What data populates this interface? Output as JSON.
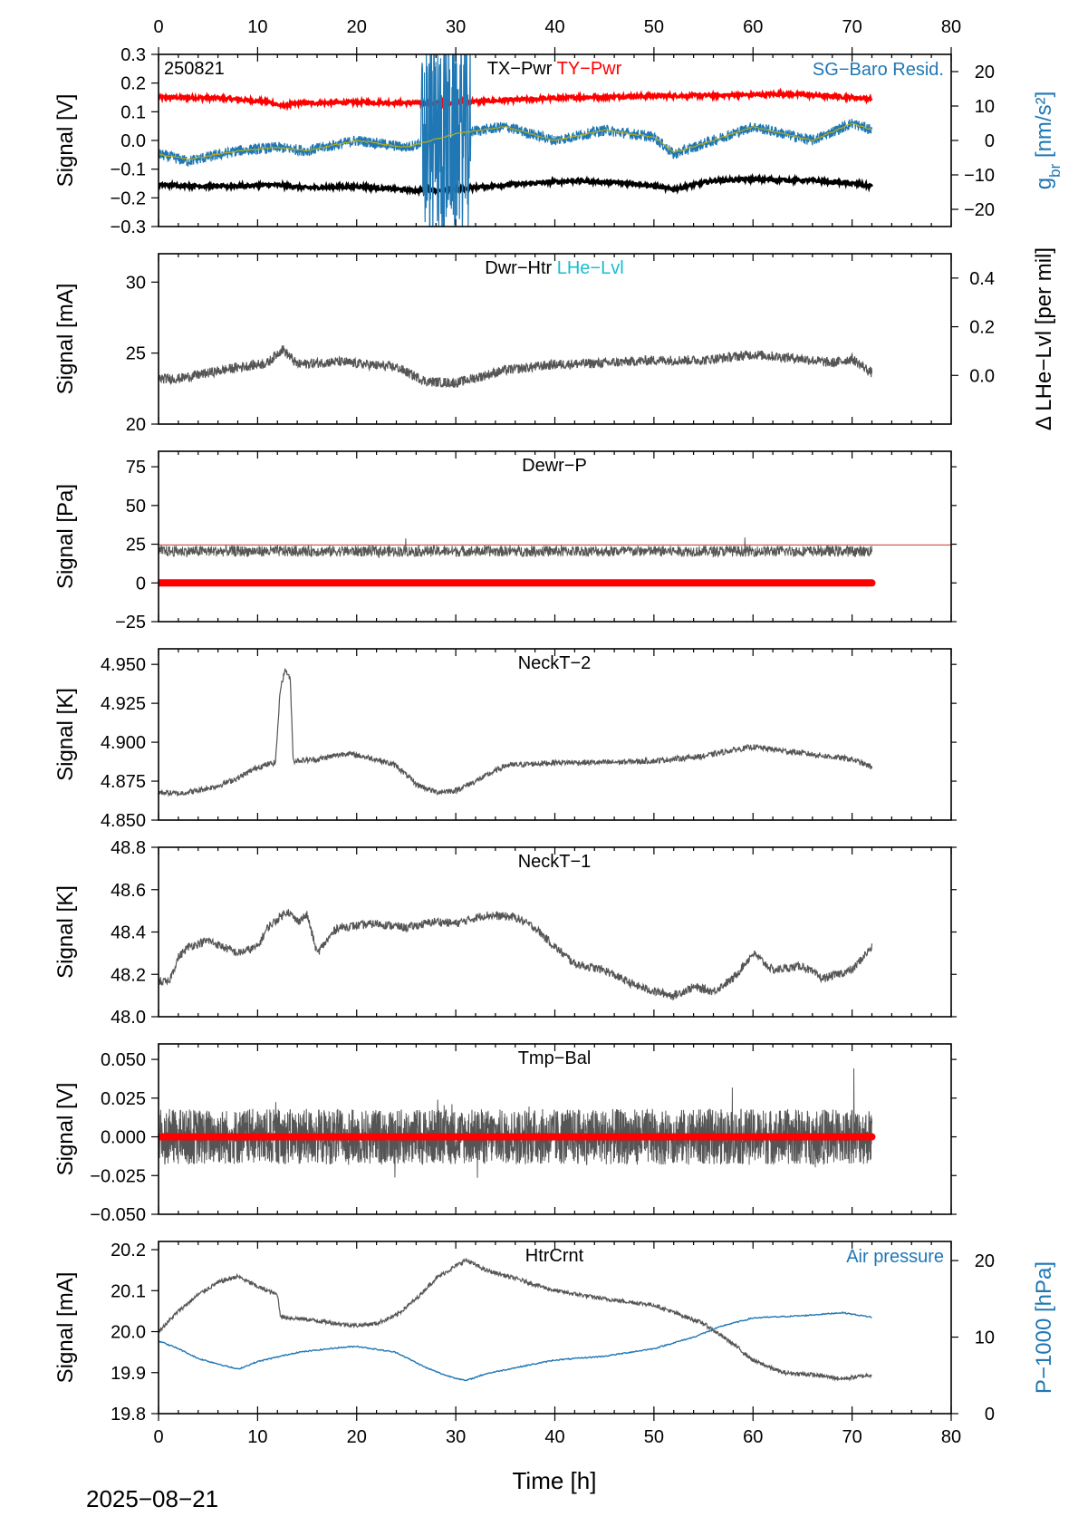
{
  "figure": {
    "date_label": "2025−08−21",
    "x_axis_label": "Time [h]",
    "x_range": [
      0,
      80
    ],
    "x_ticks": [
      0,
      10,
      20,
      30,
      40,
      50,
      60,
      70,
      80
    ],
    "x_minor_step": 2,
    "data_end_h": 72
  },
  "chart_data": [
    {
      "id": "power",
      "type": "line",
      "panel_titles": [
        {
          "text": "TX−Pwr",
          "color": "#000000"
        },
        {
          "text": "TY−Pwr",
          "color": "#ff0000"
        }
      ],
      "corner_label": "250821",
      "right_title": {
        "text": "SG−Baro Resid.",
        "color": "#1f77b4"
      },
      "ylabel": "Signal [V]",
      "ylim": [
        -0.3,
        0.3
      ],
      "yticks": [
        -0.3,
        -0.2,
        -0.1,
        0.0,
        0.1,
        0.2,
        0.3
      ],
      "ytick_labels": [
        "−0.3",
        "−0.2",
        "−0.1",
        "0.0",
        "0.1",
        "0.2",
        "0.3"
      ],
      "ylabel2": "g_br [nm/s²]",
      "ylim2": [
        -25,
        25
      ],
      "yticks2": [
        -20,
        -10,
        0,
        10,
        20
      ],
      "ytick_labels2": [
        "−20",
        "−10",
        "0",
        "10",
        "20"
      ],
      "series": [
        {
          "key": "ty",
          "color": "#ff0000",
          "axis": "left",
          "x": [
            0,
            6,
            11,
            12.5,
            14,
            20,
            28,
            35,
            42,
            50,
            58,
            64,
            70,
            72
          ],
          "y": [
            0.15,
            0.148,
            0.135,
            0.12,
            0.13,
            0.133,
            0.13,
            0.14,
            0.15,
            0.155,
            0.158,
            0.162,
            0.15,
            0.145
          ]
        },
        {
          "key": "tx",
          "color": "#000000",
          "axis": "left",
          "x": [
            0,
            6,
            12,
            15,
            20,
            26,
            30,
            35,
            42,
            48,
            52,
            56,
            60,
            66,
            70,
            72
          ],
          "y": [
            -0.155,
            -0.16,
            -0.155,
            -0.165,
            -0.16,
            -0.175,
            -0.17,
            -0.155,
            -0.14,
            -0.15,
            -0.17,
            -0.14,
            -0.135,
            -0.14,
            -0.15,
            -0.16
          ]
        },
        {
          "key": "sg",
          "color": "#1f77b4",
          "axis": "right",
          "x": [
            0,
            3,
            8,
            12,
            15,
            20,
            25,
            30,
            35,
            40,
            45,
            50,
            52,
            56,
            60,
            63,
            66,
            70,
            72
          ],
          "y": [
            -4,
            -6,
            -3,
            -2,
            -3,
            0,
            -2,
            2,
            4,
            0,
            3,
            1,
            -4,
            0,
            4,
            2,
            0,
            5,
            3
          ]
        },
        {
          "key": "sg_fit",
          "color": "#b5ad1a",
          "axis": "right",
          "x": [
            0,
            3,
            8,
            12,
            15,
            20,
            25,
            30,
            35,
            40,
            45,
            50,
            52,
            56,
            60,
            63,
            66,
            70,
            72
          ],
          "y": [
            -4,
            -5.5,
            -3,
            -2,
            -3,
            0,
            -2,
            2,
            4,
            0,
            3,
            1,
            -3.5,
            0,
            4,
            2,
            0,
            5,
            3
          ]
        }
      ]
    },
    {
      "id": "heater",
      "type": "line",
      "panel_titles": [
        {
          "text": "Dwr−Htr",
          "color": "#000000"
        },
        {
          "text": "LHe−Lvl",
          "color": "#17becf"
        }
      ],
      "ylabel": "Signal [mA]",
      "ylim": [
        20,
        32
      ],
      "yticks": [
        20,
        25,
        30
      ],
      "ytick_labels": [
        "20",
        "25",
        "30"
      ],
      "ylabel2": "Δ LHe−Lvl [per mil]",
      "ylim2": [
        -0.2,
        0.5
      ],
      "yticks2": [
        0.0,
        0.2,
        0.4
      ],
      "ytick_labels2": [
        "0.0",
        "0.2",
        "0.4"
      ],
      "series": [
        {
          "key": "dwr_htr",
          "color": "#555555",
          "x": [
            0,
            2,
            5,
            8,
            11,
            12.5,
            14,
            18,
            24,
            27,
            30,
            35,
            40,
            45,
            50,
            55,
            60,
            65,
            68,
            70,
            72
          ],
          "y": [
            23.2,
            23.2,
            23.6,
            24.0,
            24.3,
            25.3,
            24.2,
            24.4,
            24.0,
            23.0,
            22.9,
            23.8,
            24.2,
            24.3,
            24.5,
            24.5,
            24.9,
            24.6,
            24.3,
            24.6,
            23.6
          ]
        }
      ]
    },
    {
      "id": "dewar_p",
      "type": "line",
      "panel_titles": [
        {
          "text": "Dewr−P",
          "color": "#000000"
        }
      ],
      "ylabel": "Signal [Pa]",
      "ylim": [
        -25,
        85
      ],
      "yticks": [
        -25,
        0,
        25,
        50,
        75
      ],
      "ytick_labels": [
        "−25",
        "0",
        "25",
        "50",
        "75"
      ],
      "series": [
        {
          "key": "dewr_p",
          "color": "#555555",
          "x": [
            0,
            72
          ],
          "y": [
            20.5,
            20.5
          ]
        },
        {
          "key": "zero",
          "color": "#ff0000",
          "x": [
            0,
            72
          ],
          "y": [
            0,
            0
          ]
        },
        {
          "key": "ref_line",
          "color": "#cc3333",
          "x": [
            0,
            80
          ],
          "y": [
            24.5,
            24.5
          ]
        }
      ]
    },
    {
      "id": "neck2",
      "type": "line",
      "panel_titles": [
        {
          "text": "NeckT−2",
          "color": "#000000"
        }
      ],
      "ylabel": "Signal [K]",
      "ylim": [
        4.85,
        4.96
      ],
      "yticks": [
        4.85,
        4.875,
        4.9,
        4.925,
        4.95
      ],
      "ytick_labels": [
        "4.850",
        "4.875",
        "4.900",
        "4.925",
        "4.950"
      ],
      "series": [
        {
          "key": "neck2",
          "color": "#555555",
          "x": [
            0,
            2,
            4,
            6,
            8,
            10,
            11.8,
            12.3,
            12.8,
            13.3,
            13.6,
            16,
            19,
            22,
            24,
            26,
            28,
            30,
            32,
            35,
            40,
            45,
            50,
            55,
            58,
            60,
            65,
            70,
            72
          ],
          "y": [
            4.868,
            4.867,
            4.869,
            4.872,
            4.877,
            4.884,
            4.887,
            4.935,
            4.947,
            4.94,
            4.888,
            4.889,
            4.893,
            4.889,
            4.885,
            4.873,
            4.868,
            4.869,
            4.875,
            4.885,
            4.887,
            4.887,
            4.888,
            4.891,
            4.895,
            4.897,
            4.893,
            4.889,
            4.884
          ]
        }
      ]
    },
    {
      "id": "neck1",
      "type": "line",
      "panel_titles": [
        {
          "text": "NeckT−1",
          "color": "#000000"
        }
      ],
      "ylabel": "Signal [K]",
      "ylim": [
        48.0,
        48.8
      ],
      "yticks": [
        48.0,
        48.2,
        48.4,
        48.6,
        48.8
      ],
      "ytick_labels": [
        "48.0",
        "48.2",
        "48.4",
        "48.6",
        "48.8"
      ],
      "series": [
        {
          "key": "neck1",
          "color": "#555555",
          "x": [
            0,
            1,
            2,
            3,
            5,
            8,
            10,
            11,
            13,
            14,
            15,
            16,
            18,
            22,
            25,
            28,
            30,
            33,
            36,
            38,
            40,
            42,
            45,
            48,
            50,
            52,
            54,
            56,
            58,
            60,
            62,
            65,
            67,
            70,
            72
          ],
          "y": [
            48.17,
            48.16,
            48.28,
            48.33,
            48.36,
            48.3,
            48.33,
            48.42,
            48.5,
            48.45,
            48.48,
            48.3,
            48.42,
            48.44,
            48.42,
            48.45,
            48.44,
            48.48,
            48.47,
            48.42,
            48.33,
            48.25,
            48.22,
            48.15,
            48.12,
            48.1,
            48.14,
            48.12,
            48.18,
            48.3,
            48.22,
            48.24,
            48.18,
            48.22,
            48.33
          ]
        }
      ]
    },
    {
      "id": "tmp_bal",
      "type": "line",
      "panel_titles": [
        {
          "text": "Tmp−Bal",
          "color": "#000000"
        }
      ],
      "ylabel": "Signal [V]",
      "ylim": [
        -0.05,
        0.06
      ],
      "yticks": [
        -0.05,
        -0.025,
        0.0,
        0.025,
        0.05
      ],
      "ytick_labels": [
        "−0.050",
        "−0.025",
        "0.000",
        "0.025",
        "0.050"
      ],
      "series": [
        {
          "key": "tmp_bal",
          "color": "#555555",
          "x": [
            0,
            72
          ],
          "y": [
            0.0,
            0.0
          ]
        },
        {
          "key": "zero",
          "color": "#ff0000",
          "x": [
            0,
            72
          ],
          "y": [
            0.0,
            0.0
          ]
        }
      ]
    },
    {
      "id": "htr_crnt",
      "type": "line",
      "panel_titles": [
        {
          "text": "HtrCrnt",
          "color": "#000000"
        }
      ],
      "right_title": {
        "text": "Air pressure",
        "color": "#1f77b4"
      },
      "ylabel": "Signal [mA]",
      "ylim": [
        19.8,
        20.22
      ],
      "yticks": [
        19.8,
        19.9,
        20.0,
        20.1,
        20.2
      ],
      "ytick_labels": [
        "19.8",
        "19.9",
        "20.0",
        "20.1",
        "20.2"
      ],
      "ylabel2": "P−1000 [hPa]",
      "ylim2": [
        0,
        22.5
      ],
      "yticks2": [
        0,
        10,
        20
      ],
      "ytick_labels2": [
        "0",
        "10",
        "20"
      ],
      "series": [
        {
          "key": "htr_crnt",
          "color": "#555555",
          "axis": "left",
          "x": [
            0,
            2,
            4,
            6,
            8,
            10,
            12,
            12.3,
            12.6,
            15,
            18,
            20,
            22,
            24,
            26,
            28,
            31,
            33,
            36,
            40,
            45,
            50,
            55,
            58,
            60,
            63,
            66,
            69,
            72
          ],
          "y": [
            20.0,
            20.05,
            20.09,
            20.12,
            20.135,
            20.11,
            20.09,
            20.04,
            20.035,
            20.03,
            20.02,
            20.015,
            20.02,
            20.04,
            20.08,
            20.13,
            20.175,
            20.15,
            20.13,
            20.1,
            20.08,
            20.065,
            20.02,
            19.97,
            19.93,
            19.9,
            19.895,
            19.885,
            19.895
          ]
        },
        {
          "key": "air_p",
          "color": "#1f77b4",
          "axis": "right",
          "x": [
            0,
            2,
            4,
            6,
            8,
            10,
            14,
            18,
            20,
            24,
            27,
            29,
            31,
            33,
            36,
            40,
            45,
            50,
            54,
            57,
            60,
            65,
            69,
            72
          ],
          "y": [
            9.5,
            8.5,
            7.2,
            6.5,
            5.8,
            6.8,
            8.0,
            8.6,
            8.8,
            8.0,
            6.0,
            5.0,
            4.3,
            5.2,
            6.0,
            7.0,
            7.5,
            8.5,
            10.0,
            11.5,
            12.5,
            12.8,
            13.2,
            12.6
          ]
        }
      ]
    }
  ]
}
